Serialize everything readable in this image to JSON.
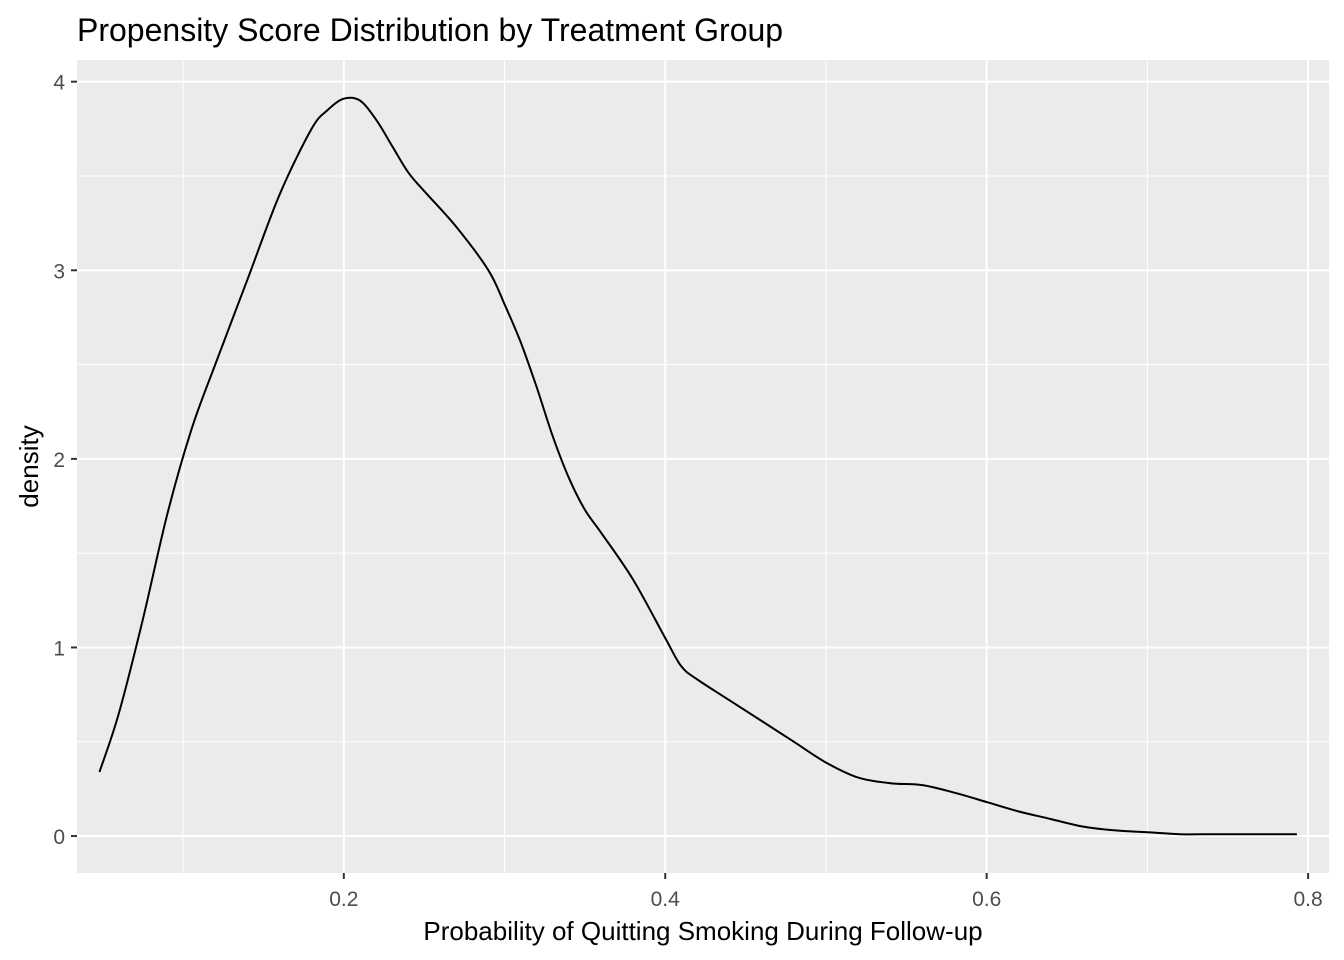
{
  "chart_data": {
    "type": "line",
    "title": "Propensity Score Distribution by Treatment Group",
    "xlabel": "Probability of Quitting Smoking During Follow-up",
    "ylabel": "density",
    "xlim": [
      0.034,
      0.813
    ],
    "ylim": [
      -0.196,
      4.115
    ],
    "x_ticks": [
      0.2,
      0.4,
      0.6,
      0.8
    ],
    "x_tick_labels": [
      "0.2",
      "0.4",
      "0.6",
      "0.8"
    ],
    "x_minor_ticks": [
      0.1,
      0.3,
      0.5,
      0.7
    ],
    "y_ticks": [
      0,
      1,
      2,
      3,
      4
    ],
    "y_tick_labels": [
      "0",
      "1",
      "2",
      "3",
      "4"
    ],
    "y_minor_ticks": [
      0.5,
      1.5,
      2.5,
      3.5
    ],
    "grid": true,
    "legend": "none",
    "colors": {
      "panel": "#ebebeb",
      "grid": "#ffffff",
      "line": "#000000",
      "tick_text": "#4d4d4d"
    },
    "series": [
      {
        "x": [
          0.048,
          0.06,
          0.075,
          0.09,
          0.105,
          0.12,
          0.14,
          0.16,
          0.18,
          0.19,
          0.2,
          0.21,
          0.22,
          0.23,
          0.24,
          0.25,
          0.27,
          0.29,
          0.3,
          0.31,
          0.32,
          0.33,
          0.34,
          0.35,
          0.36,
          0.38,
          0.4,
          0.41,
          0.42,
          0.44,
          0.46,
          0.48,
          0.5,
          0.52,
          0.54,
          0.56,
          0.58,
          0.6,
          0.62,
          0.64,
          0.66,
          0.68,
          0.7,
          0.72,
          0.74,
          0.76,
          0.78,
          0.793
        ],
        "y": [
          0.34,
          0.65,
          1.15,
          1.7,
          2.15,
          2.5,
          2.95,
          3.4,
          3.75,
          3.85,
          3.91,
          3.9,
          3.8,
          3.66,
          3.52,
          3.42,
          3.23,
          3.0,
          2.82,
          2.62,
          2.38,
          2.12,
          1.9,
          1.73,
          1.61,
          1.36,
          1.05,
          0.9,
          0.83,
          0.72,
          0.61,
          0.5,
          0.39,
          0.31,
          0.28,
          0.27,
          0.23,
          0.18,
          0.13,
          0.09,
          0.05,
          0.03,
          0.02,
          0.01,
          0.01,
          0.01,
          0.01,
          0.01
        ]
      }
    ]
  }
}
